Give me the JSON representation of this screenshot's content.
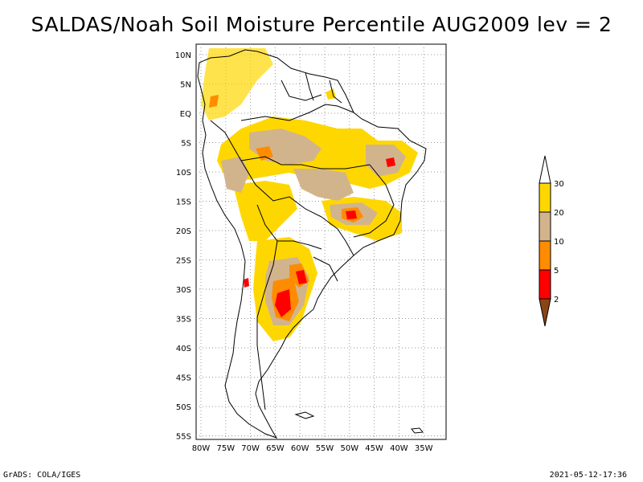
{
  "title": "SALDAS/Noah Soil Moisture Percentile AUG2009 lev = 2",
  "footer": {
    "left": "GrADS: COLA/IGES",
    "right": "2021-05-12-17:36"
  },
  "axes": {
    "lon_labels": [
      "80W",
      "75W",
      "70W",
      "65W",
      "60W",
      "55W",
      "50W",
      "45W",
      "40W",
      "35W"
    ],
    "lat_labels": [
      "10N",
      "5N",
      "EQ",
      "5S",
      "10S",
      "15S",
      "20S",
      "25S",
      "30S",
      "35S",
      "40S",
      "45S",
      "50S",
      "55S"
    ],
    "lon_range": [
      -81,
      -31
    ],
    "lat_range": [
      -56,
      12
    ],
    "grid": "dotted"
  },
  "colorbar": {
    "labels": [
      "2",
      "5",
      "10",
      "20",
      "30"
    ],
    "colors": [
      "#8b4513",
      "#ff0000",
      "#ff8c00",
      "#d2b48c",
      "#ffd700"
    ],
    "top_color": "#ffffff"
  },
  "chart_data": {
    "type": "heatmap",
    "title": "SALDAS/Noah Soil Moisture Percentile AUG2009 lev = 2",
    "legend_levels": [
      2,
      5,
      10,
      20,
      30
    ]
  }
}
